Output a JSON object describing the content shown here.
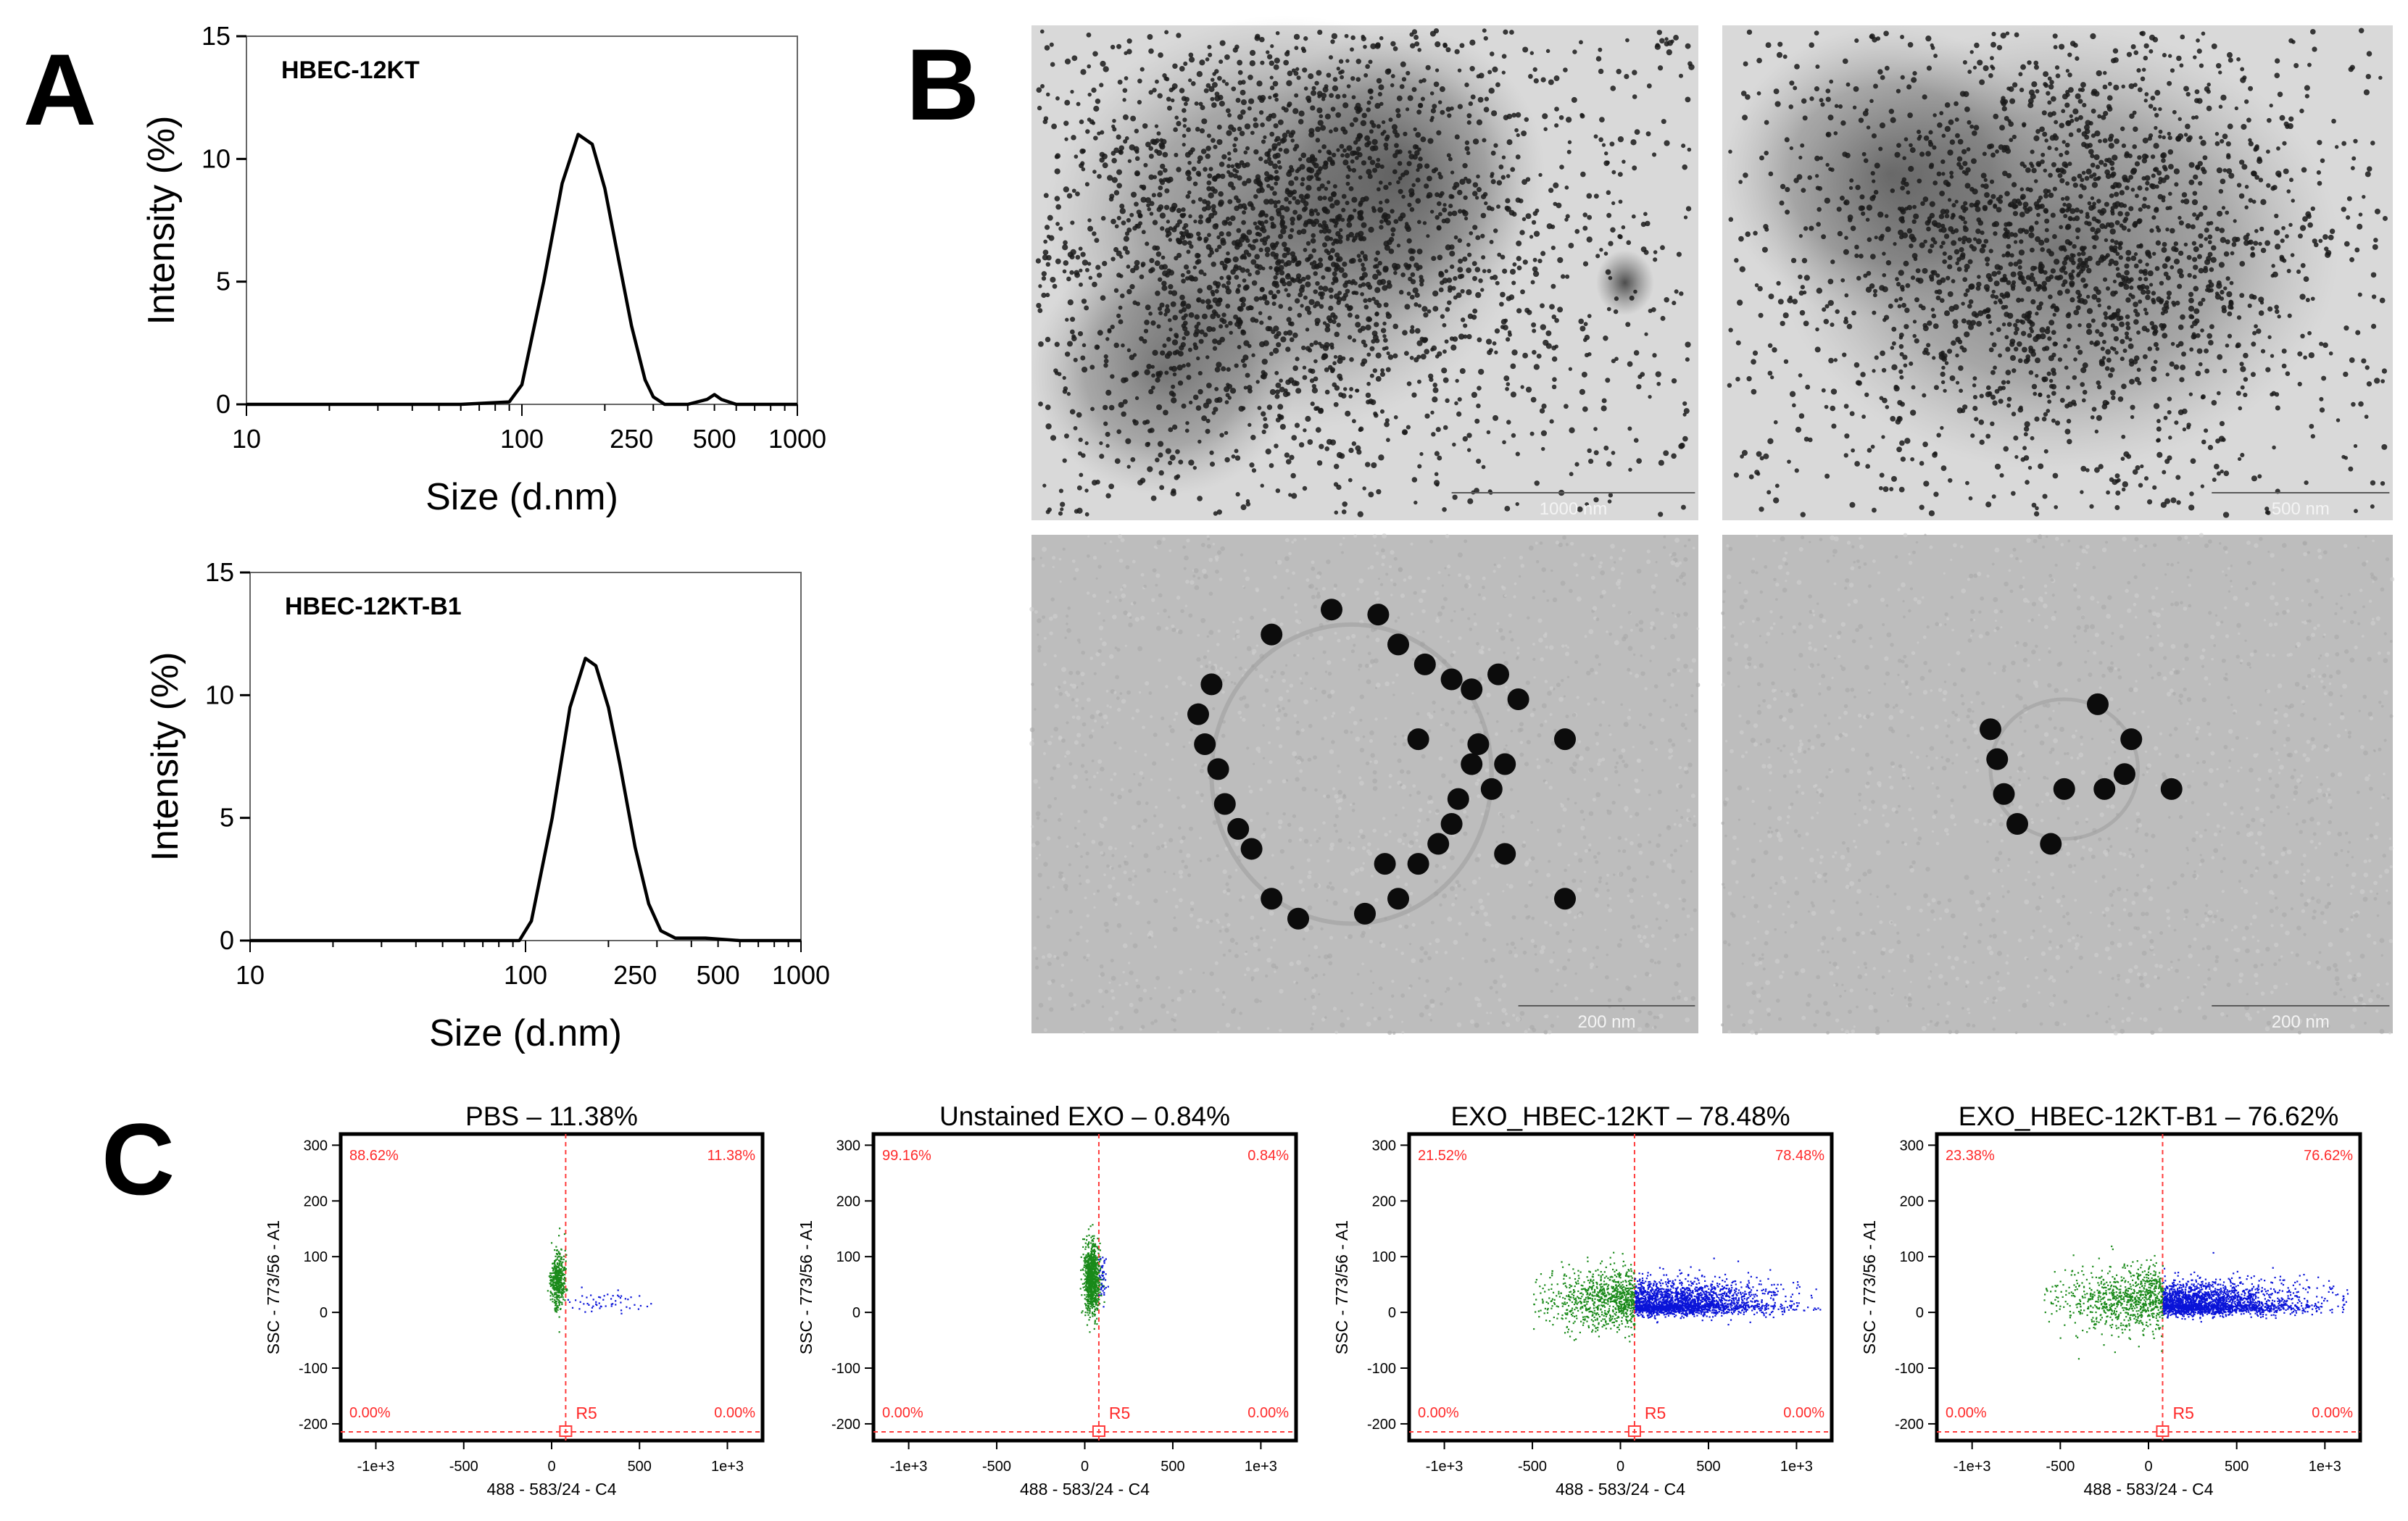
{
  "panel_labels": {
    "a": "A",
    "b": "B",
    "c": "C"
  },
  "colors": {
    "line": "#000000",
    "gate": "#ff3b3b",
    "neg_events": "#1a8a1a",
    "pos_events": "#0a14d8",
    "quad_text": "#ff2a2a"
  },
  "chart_data": [
    {
      "type": "line",
      "panel": "A",
      "series": [
        {
          "name": "HBEC-12KT",
          "x": [
            10,
            60,
            90,
            100,
            120,
            140,
            160,
            180,
            200,
            220,
            250,
            280,
            300,
            330,
            400,
            470,
            500,
            530,
            600,
            1000
          ],
          "y": [
            0,
            0,
            0.1,
            0.8,
            5.0,
            9.0,
            11.0,
            10.6,
            8.8,
            6.4,
            3.2,
            1.0,
            0.3,
            0,
            0,
            0.2,
            0.4,
            0.2,
            0,
            0
          ]
        }
      ],
      "annotation": "HBEC-12KT",
      "xlabel": "Size (d.nm)",
      "ylabel": "Intensity (%)",
      "xscale": "log",
      "xlim": [
        10,
        1000
      ],
      "ylim": [
        0,
        15
      ],
      "xticks": [
        10,
        100,
        250,
        500,
        1000
      ],
      "xtick_labels": [
        "10",
        "100",
        "250",
        "500",
        "1000"
      ],
      "yticks": [
        0,
        5,
        10,
        15
      ],
      "ytick_labels": [
        "0",
        "5",
        "10",
        "15"
      ],
      "grid": false
    },
    {
      "type": "line",
      "panel": "A",
      "series": [
        {
          "name": "HBEC-12KT-B1",
          "x": [
            10,
            70,
            95,
            105,
            125,
            145,
            165,
            180,
            200,
            220,
            250,
            280,
            310,
            350,
            400,
            450,
            600,
            1000
          ],
          "y": [
            0,
            0,
            0,
            0.8,
            5.0,
            9.5,
            11.5,
            11.2,
            9.5,
            7.2,
            3.8,
            1.5,
            0.4,
            0.1,
            0.1,
            0.1,
            0,
            0
          ]
        }
      ],
      "annotation": "HBEC-12KT-B1",
      "xlabel": "Size (d.nm)",
      "ylabel": "Intensity (%)",
      "xscale": "log",
      "xlim": [
        10,
        1000
      ],
      "ylim": [
        0,
        15
      ],
      "xticks": [
        10,
        100,
        250,
        500,
        1000
      ],
      "xtick_labels": [
        "10",
        "100",
        "250",
        "500",
        "1000"
      ],
      "yticks": [
        0,
        5,
        10,
        15
      ],
      "ytick_labels": [
        "0",
        "5",
        "10",
        "15"
      ],
      "grid": false
    },
    {
      "type": "scatter",
      "panel": "C",
      "title": "PBS – 11.38%",
      "quadrants": {
        "ul": "88.62%",
        "ur": "11.38%",
        "ll": "0.00%",
        "lr": "0.00%"
      },
      "gate_label": "R5",
      "gate_x": 80,
      "xlabel": "488 - 583/24 - C4",
      "ylabel": "SSC - 773/56 - A1",
      "xlim": [
        -1200,
        1200
      ],
      "ylim": [
        -230,
        320
      ],
      "xticks": [
        -1000,
        -500,
        0,
        500,
        1000
      ],
      "xtick_labels": [
        "-1e+3",
        "-500",
        "0",
        "500",
        "1e+3"
      ],
      "yticks": [
        -200,
        -100,
        0,
        100,
        200,
        300
      ],
      "ytick_labels": [
        "-200",
        "-100",
        "0",
        "100",
        "200",
        "300"
      ],
      "neg_cluster": {
        "x": [
          -10,
          70
        ],
        "y": [
          10,
          110
        ]
      },
      "pos_cluster": {
        "x": [
          80,
          560
        ],
        "y": [
          0,
          40
        ]
      }
    },
    {
      "type": "scatter",
      "panel": "C",
      "title": "Unstained EXO – 0.84%",
      "quadrants": {
        "ul": "99.16%",
        "ur": "0.84%",
        "ll": "0.00%",
        "lr": "0.00%"
      },
      "gate_label": "R5",
      "gate_x": 80,
      "xlabel": "488 - 583/24 - C4",
      "ylabel": "SSC - 773/56 - A1",
      "xlim": [
        -1200,
        1200
      ],
      "ylim": [
        -230,
        320
      ],
      "xticks": [
        -1000,
        -500,
        0,
        500,
        1000
      ],
      "xtick_labels": [
        "-1e+3",
        "-500",
        "0",
        "500",
        "1e+3"
      ],
      "yticks": [
        -200,
        -100,
        0,
        100,
        200,
        300
      ],
      "ytick_labels": [
        "-200",
        "-100",
        "0",
        "100",
        "200",
        "300"
      ],
      "neg_cluster": {
        "x": [
          -10,
          80
        ],
        "y": [
          0,
          125
        ]
      },
      "pos_cluster": {
        "x": [
          80,
          120
        ],
        "y": [
          10,
          110
        ]
      }
    },
    {
      "type": "scatter",
      "panel": "C",
      "title": "EXO_HBEC-12KT – 78.48%",
      "quadrants": {
        "ul": "21.52%",
        "ur": "78.48%",
        "ll": "0.00%",
        "lr": "0.00%"
      },
      "gate_label": "R5",
      "gate_x": 80,
      "xlabel": "488 - 583/24 - C4",
      "ylabel": "SSC - 773/56 - A1",
      "xlim": [
        -1200,
        1200
      ],
      "ylim": [
        -230,
        320
      ],
      "xticks": [
        -1000,
        -500,
        0,
        500,
        1000
      ],
      "xtick_labels": [
        "-1e+3",
        "-500",
        "0",
        "500",
        "1e+3"
      ],
      "yticks": [
        -200,
        -100,
        0,
        100,
        200,
        300
      ],
      "ytick_labels": [
        "-200",
        "-100",
        "0",
        "100",
        "200",
        "300"
      ],
      "neg_cluster": {
        "x": [
          -500,
          80
        ],
        "y": [
          0,
          100
        ]
      },
      "pos_cluster": {
        "x": [
          80,
          1150
        ],
        "y": [
          0,
          110
        ]
      }
    },
    {
      "type": "scatter",
      "panel": "C",
      "title": "EXO_HBEC-12KT-B1 – 76.62%",
      "quadrants": {
        "ul": "23.38%",
        "ur": "76.62%",
        "ll": "0.00%",
        "lr": "0.00%"
      },
      "gate_label": "R5",
      "gate_x": 80,
      "xlabel": "488 - 583/24 - C4",
      "ylabel": "SSC - 773/56 - A1",
      "xlim": [
        -1200,
        1200
      ],
      "ylim": [
        -230,
        320
      ],
      "xticks": [
        -1000,
        -500,
        0,
        500,
        1000
      ],
      "xtick_labels": [
        "-1e+3",
        "-500",
        "0",
        "500",
        "1e+3"
      ],
      "yticks": [
        -200,
        -100,
        0,
        100,
        200,
        300
      ],
      "ytick_labels": [
        "-200",
        "-100",
        "0",
        "100",
        "200",
        "300"
      ],
      "neg_cluster": {
        "x": [
          -600,
          80
        ],
        "y": [
          0,
          110
        ]
      },
      "pos_cluster": {
        "x": [
          80,
          1150
        ],
        "y": [
          0,
          110
        ]
      }
    }
  ],
  "micrographs": [
    {
      "name": "tem-top-left",
      "scale_label": "1000 nm",
      "style": "dense"
    },
    {
      "name": "tem-top-right",
      "scale_label": "500 nm",
      "style": "dense"
    },
    {
      "name": "tem-bottom-left",
      "scale_label": "200 nm",
      "style": "ring-large"
    },
    {
      "name": "tem-bottom-right",
      "scale_label": "200 nm",
      "style": "ring-small"
    }
  ]
}
